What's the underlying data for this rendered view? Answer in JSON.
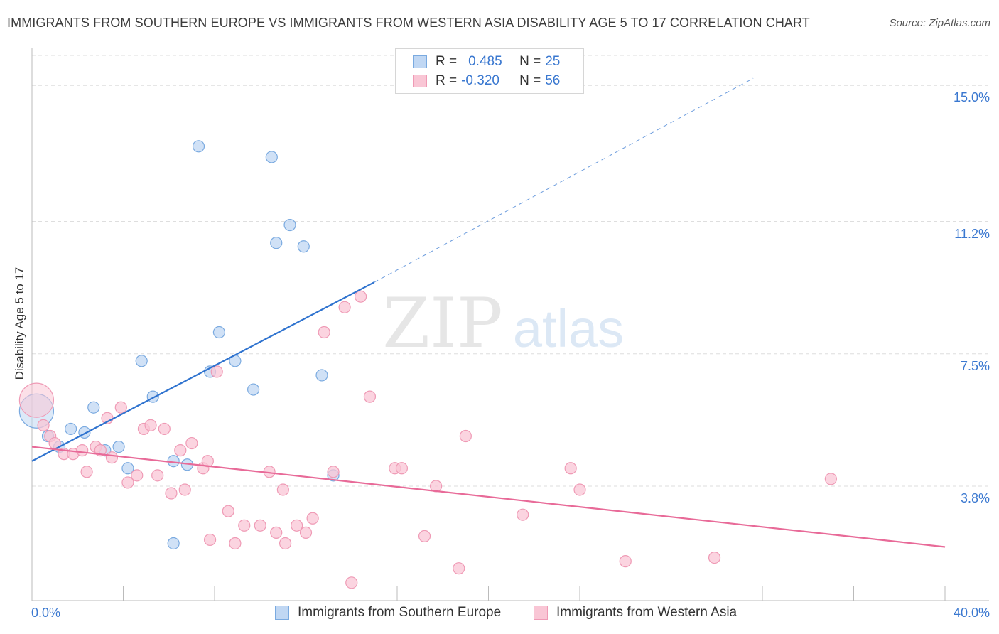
{
  "title": "IMMIGRANTS FROM SOUTHERN EUROPE VS IMMIGRANTS FROM WESTERN ASIA DISABILITY AGE 5 TO 17 CORRELATION CHART",
  "source": "Source: ZipAtlas.com",
  "watermark": {
    "zip": "ZIP",
    "atlas": "atlas"
  },
  "legend": {
    "rows": [
      {
        "r_label": "R =",
        "r_value": "0.485",
        "n_label": "N =",
        "n_value": "25"
      },
      {
        "r_label": "R =",
        "r_value": "-0.320",
        "n_label": "N =",
        "n_value": "56"
      }
    ]
  },
  "bottom_legend": [
    "Immigrants from Southern Europe",
    "Immigrants from Western Asia"
  ],
  "colors": {
    "blue_fill": "#c0d7f3",
    "blue_stroke": "#7aaae0",
    "blue_line": "#2f73cf",
    "pink_fill": "#f9c6d5",
    "pink_stroke": "#ef9ab5",
    "pink_line": "#e86a98",
    "grid": "#dedede",
    "tick_text": "#3a78d0"
  },
  "chart_data": {
    "type": "scatter",
    "title": "IMMIGRANTS FROM SOUTHERN EUROPE VS IMMIGRANTS FROM WESTERN ASIA DISABILITY AGE 5 TO 17 CORRELATION CHART",
    "xlabel": "",
    "ylabel": "Disability Age 5 to 17",
    "xlim": [
      0,
      40
    ],
    "ylim": [
      0.6,
      15.8
    ],
    "x_tick_labels": [
      "0.0%",
      "40.0%"
    ],
    "y_ticks": [
      3.8,
      7.5,
      11.2,
      15.0
    ],
    "y_tick_labels": [
      "3.8%",
      "7.5%",
      "11.2%",
      "15.0%"
    ],
    "grid": true,
    "legend_position": "top-center",
    "series": [
      {
        "name": "Immigrants from Southern Europe",
        "color": "#7aaae0",
        "trend": {
          "x": [
            0,
            15
          ],
          "y": [
            4.5,
            9.5
          ],
          "extrapolated_to": [
            31.6,
            15.2
          ]
        },
        "points": [
          {
            "x": 0.2,
            "y": 5.9,
            "big": true
          },
          {
            "x": 0.7,
            "y": 5.2
          },
          {
            "x": 1.2,
            "y": 4.9
          },
          {
            "x": 1.7,
            "y": 5.4
          },
          {
            "x": 2.3,
            "y": 5.3
          },
          {
            "x": 2.7,
            "y": 6.0
          },
          {
            "x": 3.2,
            "y": 4.8
          },
          {
            "x": 3.8,
            "y": 4.9
          },
          {
            "x": 4.2,
            "y": 4.3
          },
          {
            "x": 4.8,
            "y": 7.3
          },
          {
            "x": 5.3,
            "y": 6.3
          },
          {
            "x": 6.2,
            "y": 2.2
          },
          {
            "x": 6.2,
            "y": 4.5
          },
          {
            "x": 6.8,
            "y": 4.4
          },
          {
            "x": 7.3,
            "y": 13.3
          },
          {
            "x": 7.8,
            "y": 7.0
          },
          {
            "x": 8.2,
            "y": 8.1
          },
          {
            "x": 8.9,
            "y": 7.3
          },
          {
            "x": 9.7,
            "y": 6.5
          },
          {
            "x": 10.5,
            "y": 13.0
          },
          {
            "x": 10.7,
            "y": 10.6
          },
          {
            "x": 11.3,
            "y": 11.1
          },
          {
            "x": 11.9,
            "y": 10.5
          },
          {
            "x": 12.7,
            "y": 6.9
          },
          {
            "x": 13.2,
            "y": 4.1
          }
        ]
      },
      {
        "name": "Immigrants from Western Asia",
        "color": "#ef9ab5",
        "trend": {
          "x": [
            0,
            40
          ],
          "y": [
            4.9,
            2.1
          ]
        },
        "points": [
          {
            "x": 0.2,
            "y": 6.2,
            "big": true
          },
          {
            "x": 0.5,
            "y": 5.5
          },
          {
            "x": 0.8,
            "y": 5.2
          },
          {
            "x": 1.0,
            "y": 5.0
          },
          {
            "x": 1.4,
            "y": 4.7
          },
          {
            "x": 1.8,
            "y": 4.7
          },
          {
            "x": 2.2,
            "y": 4.8
          },
          {
            "x": 2.4,
            "y": 4.2
          },
          {
            "x": 2.8,
            "y": 4.9
          },
          {
            "x": 3.0,
            "y": 4.8
          },
          {
            "x": 3.3,
            "y": 5.7
          },
          {
            "x": 3.5,
            "y": 4.6
          },
          {
            "x": 3.9,
            "y": 6.0
          },
          {
            "x": 4.2,
            "y": 3.9
          },
          {
            "x": 4.6,
            "y": 4.1
          },
          {
            "x": 4.9,
            "y": 5.4
          },
          {
            "x": 5.2,
            "y": 5.5
          },
          {
            "x": 5.5,
            "y": 4.1
          },
          {
            "x": 5.8,
            "y": 5.4
          },
          {
            "x": 6.1,
            "y": 3.6
          },
          {
            "x": 6.5,
            "y": 4.8
          },
          {
            "x": 6.7,
            "y": 3.7
          },
          {
            "x": 7.0,
            "y": 5.0
          },
          {
            "x": 7.5,
            "y": 4.3
          },
          {
            "x": 7.7,
            "y": 4.5
          },
          {
            "x": 7.8,
            "y": 2.3
          },
          {
            "x": 8.1,
            "y": 7.0
          },
          {
            "x": 8.6,
            "y": 3.1
          },
          {
            "x": 8.9,
            "y": 2.2
          },
          {
            "x": 9.3,
            "y": 2.7
          },
          {
            "x": 10.0,
            "y": 2.7
          },
          {
            "x": 10.4,
            "y": 4.2
          },
          {
            "x": 10.7,
            "y": 2.5
          },
          {
            "x": 11.0,
            "y": 3.7
          },
          {
            "x": 11.1,
            "y": 2.2
          },
          {
            "x": 11.6,
            "y": 2.7
          },
          {
            "x": 12.0,
            "y": 2.5
          },
          {
            "x": 12.3,
            "y": 2.9
          },
          {
            "x": 12.8,
            "y": 8.1
          },
          {
            "x": 13.2,
            "y": 4.2
          },
          {
            "x": 13.7,
            "y": 8.8
          },
          {
            "x": 14.4,
            "y": 9.1
          },
          {
            "x": 14.0,
            "y": 1.1
          },
          {
            "x": 14.8,
            "y": 6.3
          },
          {
            "x": 15.9,
            "y": 4.3
          },
          {
            "x": 16.2,
            "y": 4.3
          },
          {
            "x": 17.2,
            "y": 2.4
          },
          {
            "x": 17.7,
            "y": 3.8
          },
          {
            "x": 18.7,
            "y": 1.5
          },
          {
            "x": 19.0,
            "y": 5.2
          },
          {
            "x": 21.5,
            "y": 3.0
          },
          {
            "x": 23.6,
            "y": 4.3
          },
          {
            "x": 24.0,
            "y": 3.7
          },
          {
            "x": 26.0,
            "y": 1.7
          },
          {
            "x": 29.9,
            "y": 1.8
          },
          {
            "x": 35.0,
            "y": 4.0
          }
        ]
      }
    ]
  }
}
